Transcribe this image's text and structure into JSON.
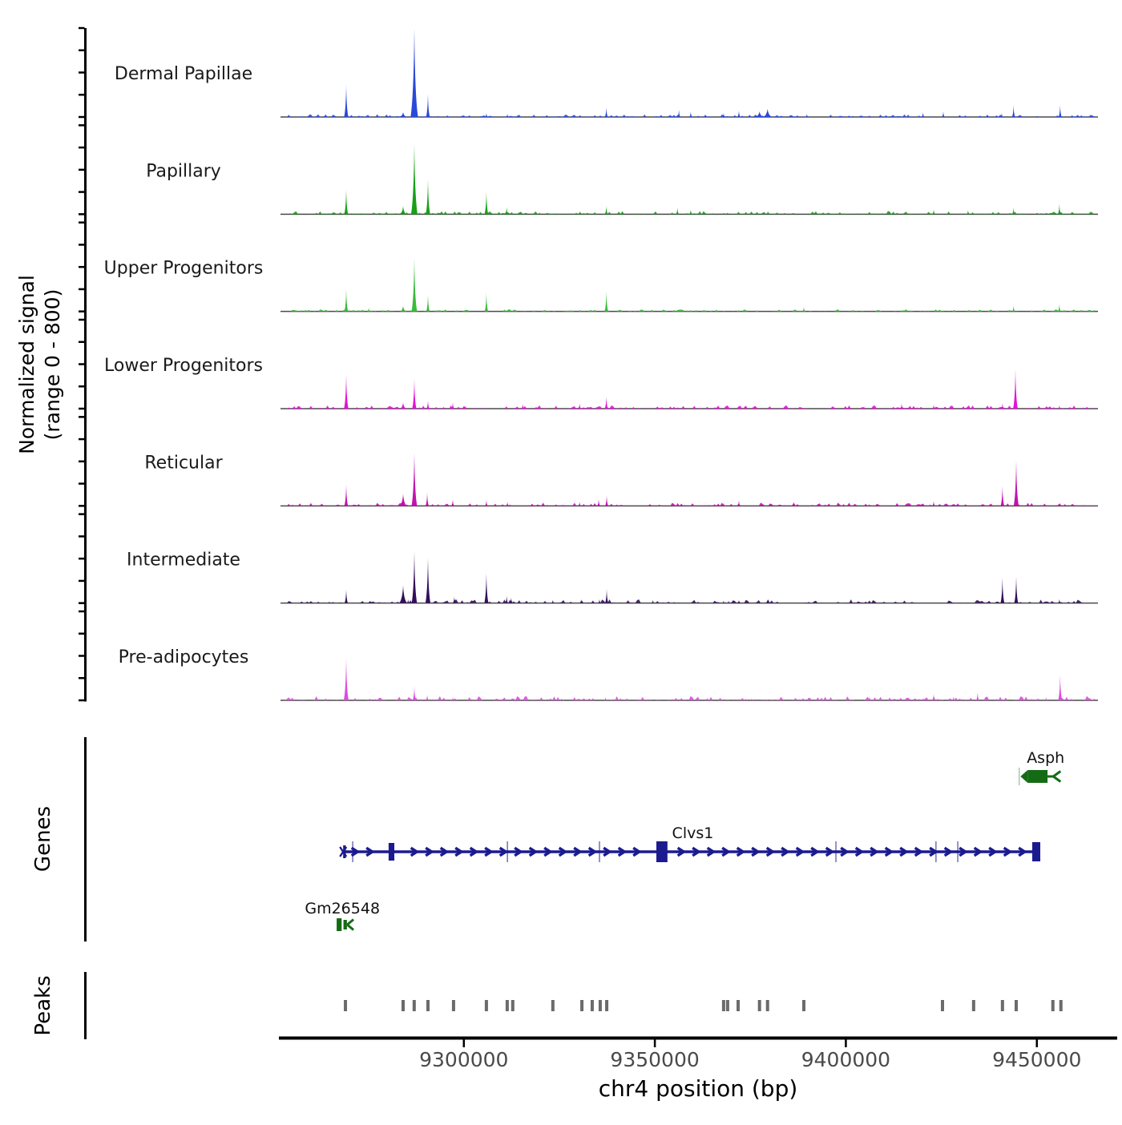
{
  "figure": {
    "y_axis_label_line1": "Normalized signal",
    "y_axis_label_line2": "(range 0 - 800)",
    "genes_section_label": "Genes",
    "peaks_section_label": "Peaks",
    "x_axis_label": "chr4 position (bp)",
    "background": "#ffffff",
    "axis_color": "#000000",
    "baseline_color": "#4a4a4a",
    "tick_label_color": "#4a4a4a",
    "peak_call_color": "#6b6b6b",
    "gene_label_color": "#111111",
    "track_label_color": "#1a1a1a"
  },
  "chart_data": {
    "type": "area",
    "subtype": "genome-signal-tracks",
    "chromosome": "chr4",
    "title": "",
    "xlabel": "chr4 position (bp)",
    "ylabel": "Normalized signal (range 0 - 800)",
    "grid": false,
    "x_range_bp": [
      9252000,
      9466000
    ],
    "x_ticks_bp": [
      9300000,
      9350000,
      9400000,
      9450000
    ],
    "y_range_per_track": [
      0,
      800
    ],
    "y_ticks_per_track": [
      0,
      200,
      400,
      600,
      800
    ],
    "tracks": [
      {
        "label": "Dermal Papillae",
        "color": "#2a49d8",
        "noise_amp": 1.3,
        "peaks": [
          [
            9269200,
            288
          ],
          [
            9284100,
            43,
            1800
          ],
          [
            9287030,
            800
          ],
          [
            9290600,
            209
          ],
          [
            9305900,
            36
          ],
          [
            9311400,
            29
          ],
          [
            9337300,
            86
          ],
          [
            9356300,
            65
          ],
          [
            9359400,
            50
          ],
          [
            9368000,
            36
          ],
          [
            9372000,
            58
          ],
          [
            9377400,
            50,
            2000
          ],
          [
            9379500,
            72,
            2200
          ],
          [
            9389800,
            29
          ],
          [
            9420200,
            43
          ],
          [
            9425500,
            50
          ],
          [
            9440800,
            36
          ],
          [
            9443900,
            108
          ],
          [
            9456100,
            108
          ]
        ]
      },
      {
        "label": "Papillary",
        "color": "#18a018",
        "noise_amp": 1.5,
        "peaks": [
          [
            9269200,
            223
          ],
          [
            9284100,
            72,
            1600
          ],
          [
            9287030,
            634
          ],
          [
            9290600,
            317
          ],
          [
            9305900,
            202
          ],
          [
            9311200,
            65
          ],
          [
            9337300,
            72
          ],
          [
            9355900,
            58
          ],
          [
            9359400,
            43
          ],
          [
            9423000,
            43
          ],
          [
            9432000,
            36
          ],
          [
            9443900,
            58
          ],
          [
            9455900,
            94
          ]
        ]
      },
      {
        "label": "Upper Progenitors",
        "color": "#3cba3c",
        "noise_amp": 1.0,
        "peaks": [
          [
            9269200,
            202
          ],
          [
            9275100,
            36
          ],
          [
            9284100,
            50,
            1500
          ],
          [
            9287030,
            483
          ],
          [
            9290600,
            151
          ],
          [
            9305900,
            166
          ],
          [
            9337300,
            180
          ],
          [
            9389000,
            43
          ],
          [
            9443900,
            50
          ],
          [
            9455900,
            65
          ]
        ]
      },
      {
        "label": "Lower Progenitors",
        "color": "#e312d6",
        "noise_amp": 1.6,
        "peaks": [
          [
            9269200,
            310
          ],
          [
            9284100,
            58,
            1500
          ],
          [
            9287030,
            274
          ],
          [
            9290600,
            72
          ],
          [
            9297100,
            58
          ],
          [
            9315400,
            43
          ],
          [
            9330300,
            50
          ],
          [
            9337300,
            108
          ],
          [
            9414600,
            50
          ],
          [
            9423000,
            36
          ],
          [
            9441000,
            50
          ],
          [
            9444400,
            355
          ],
          [
            9455900,
            29
          ]
        ]
      },
      {
        "label": "Reticular",
        "color": "#c013b0",
        "noise_amp": 1.6,
        "peaks": [
          [
            9269200,
            195
          ],
          [
            9284100,
            108,
            1800
          ],
          [
            9287030,
            483
          ],
          [
            9290400,
            123
          ],
          [
            9297100,
            58
          ],
          [
            9301700,
            29
          ],
          [
            9305900,
            50
          ],
          [
            9311400,
            36
          ],
          [
            9330300,
            36
          ],
          [
            9335300,
            58
          ],
          [
            9337400,
            94
          ],
          [
            9368000,
            29
          ],
          [
            9372000,
            50
          ],
          [
            9386300,
            36
          ],
          [
            9423000,
            43
          ],
          [
            9441000,
            180
          ],
          [
            9444600,
            410
          ],
          [
            9456100,
            29
          ]
        ]
      },
      {
        "label": "Intermediate",
        "color": "#321059",
        "noise_amp": 1.8,
        "peaks": [
          [
            9269200,
            123
          ],
          [
            9284100,
            158,
            2000
          ],
          [
            9285400,
            36
          ],
          [
            9287030,
            468
          ],
          [
            9290600,
            410
          ],
          [
            9297500,
            58
          ],
          [
            9305900,
            266
          ],
          [
            9311200,
            65
          ],
          [
            9312400,
            50
          ],
          [
            9323300,
            29
          ],
          [
            9330700,
            36
          ],
          [
            9335500,
            36
          ],
          [
            9337400,
            130
          ],
          [
            9349500,
            29
          ],
          [
            9368000,
            22
          ],
          [
            9369300,
            22
          ],
          [
            9372000,
            29
          ],
          [
            9379400,
            22
          ],
          [
            9441000,
            230
          ],
          [
            9444600,
            238
          ],
          [
            9455900,
            36
          ]
        ]
      },
      {
        "label": "Pre-adipocytes",
        "color": "#dd4be0",
        "noise_amp": 2.0,
        "peaks": [
          [
            9269200,
            382
          ],
          [
            9287030,
            130
          ],
          [
            9290400,
            50
          ],
          [
            9297100,
            29
          ],
          [
            9337100,
            29
          ],
          [
            9406200,
            36
          ],
          [
            9423000,
            58
          ],
          [
            9428200,
            36
          ],
          [
            9434500,
            72
          ],
          [
            9452400,
            29
          ],
          [
            9456100,
            230
          ]
        ]
      }
    ],
    "genes": [
      {
        "name": "Asph",
        "color": "#156b15",
        "strand": "-",
        "box_bp": [
          9447600,
          9452800
        ],
        "tail_bp": 9456200,
        "label_bp": 9452300
      },
      {
        "name": "Clvs1",
        "color": "#1b1b8f",
        "strand": "+",
        "span_bp": [
          9268400,
          9450700
        ],
        "exons_bp": [
          [
            9268400,
            9269100
          ],
          [
            9280300,
            9281800
          ],
          [
            9350400,
            9353300
          ],
          [
            9448800,
            9450900
          ]
        ],
        "intron_ticks_bp": [
          9270900,
          9311400,
          9335500,
          9397400,
          9423600,
          9429300
        ],
        "label_bp": 9354500
      },
      {
        "name": "Gm26548",
        "color": "#156b15",
        "strand": "-",
        "span_bp": [
          9266700,
          9271100
        ],
        "label_bp": 9268200
      }
    ],
    "peak_calls_bp": [
      9269000,
      9284100,
      9287000,
      9290600,
      9297300,
      9305900,
      9311350,
      9312800,
      9323300,
      9330900,
      9333600,
      9335700,
      9337400,
      9368000,
      9369050,
      9371800,
      9377400,
      9379500,
      9389000,
      9425300,
      9433450,
      9441000,
      9444600,
      9454200,
      9456300
    ]
  }
}
